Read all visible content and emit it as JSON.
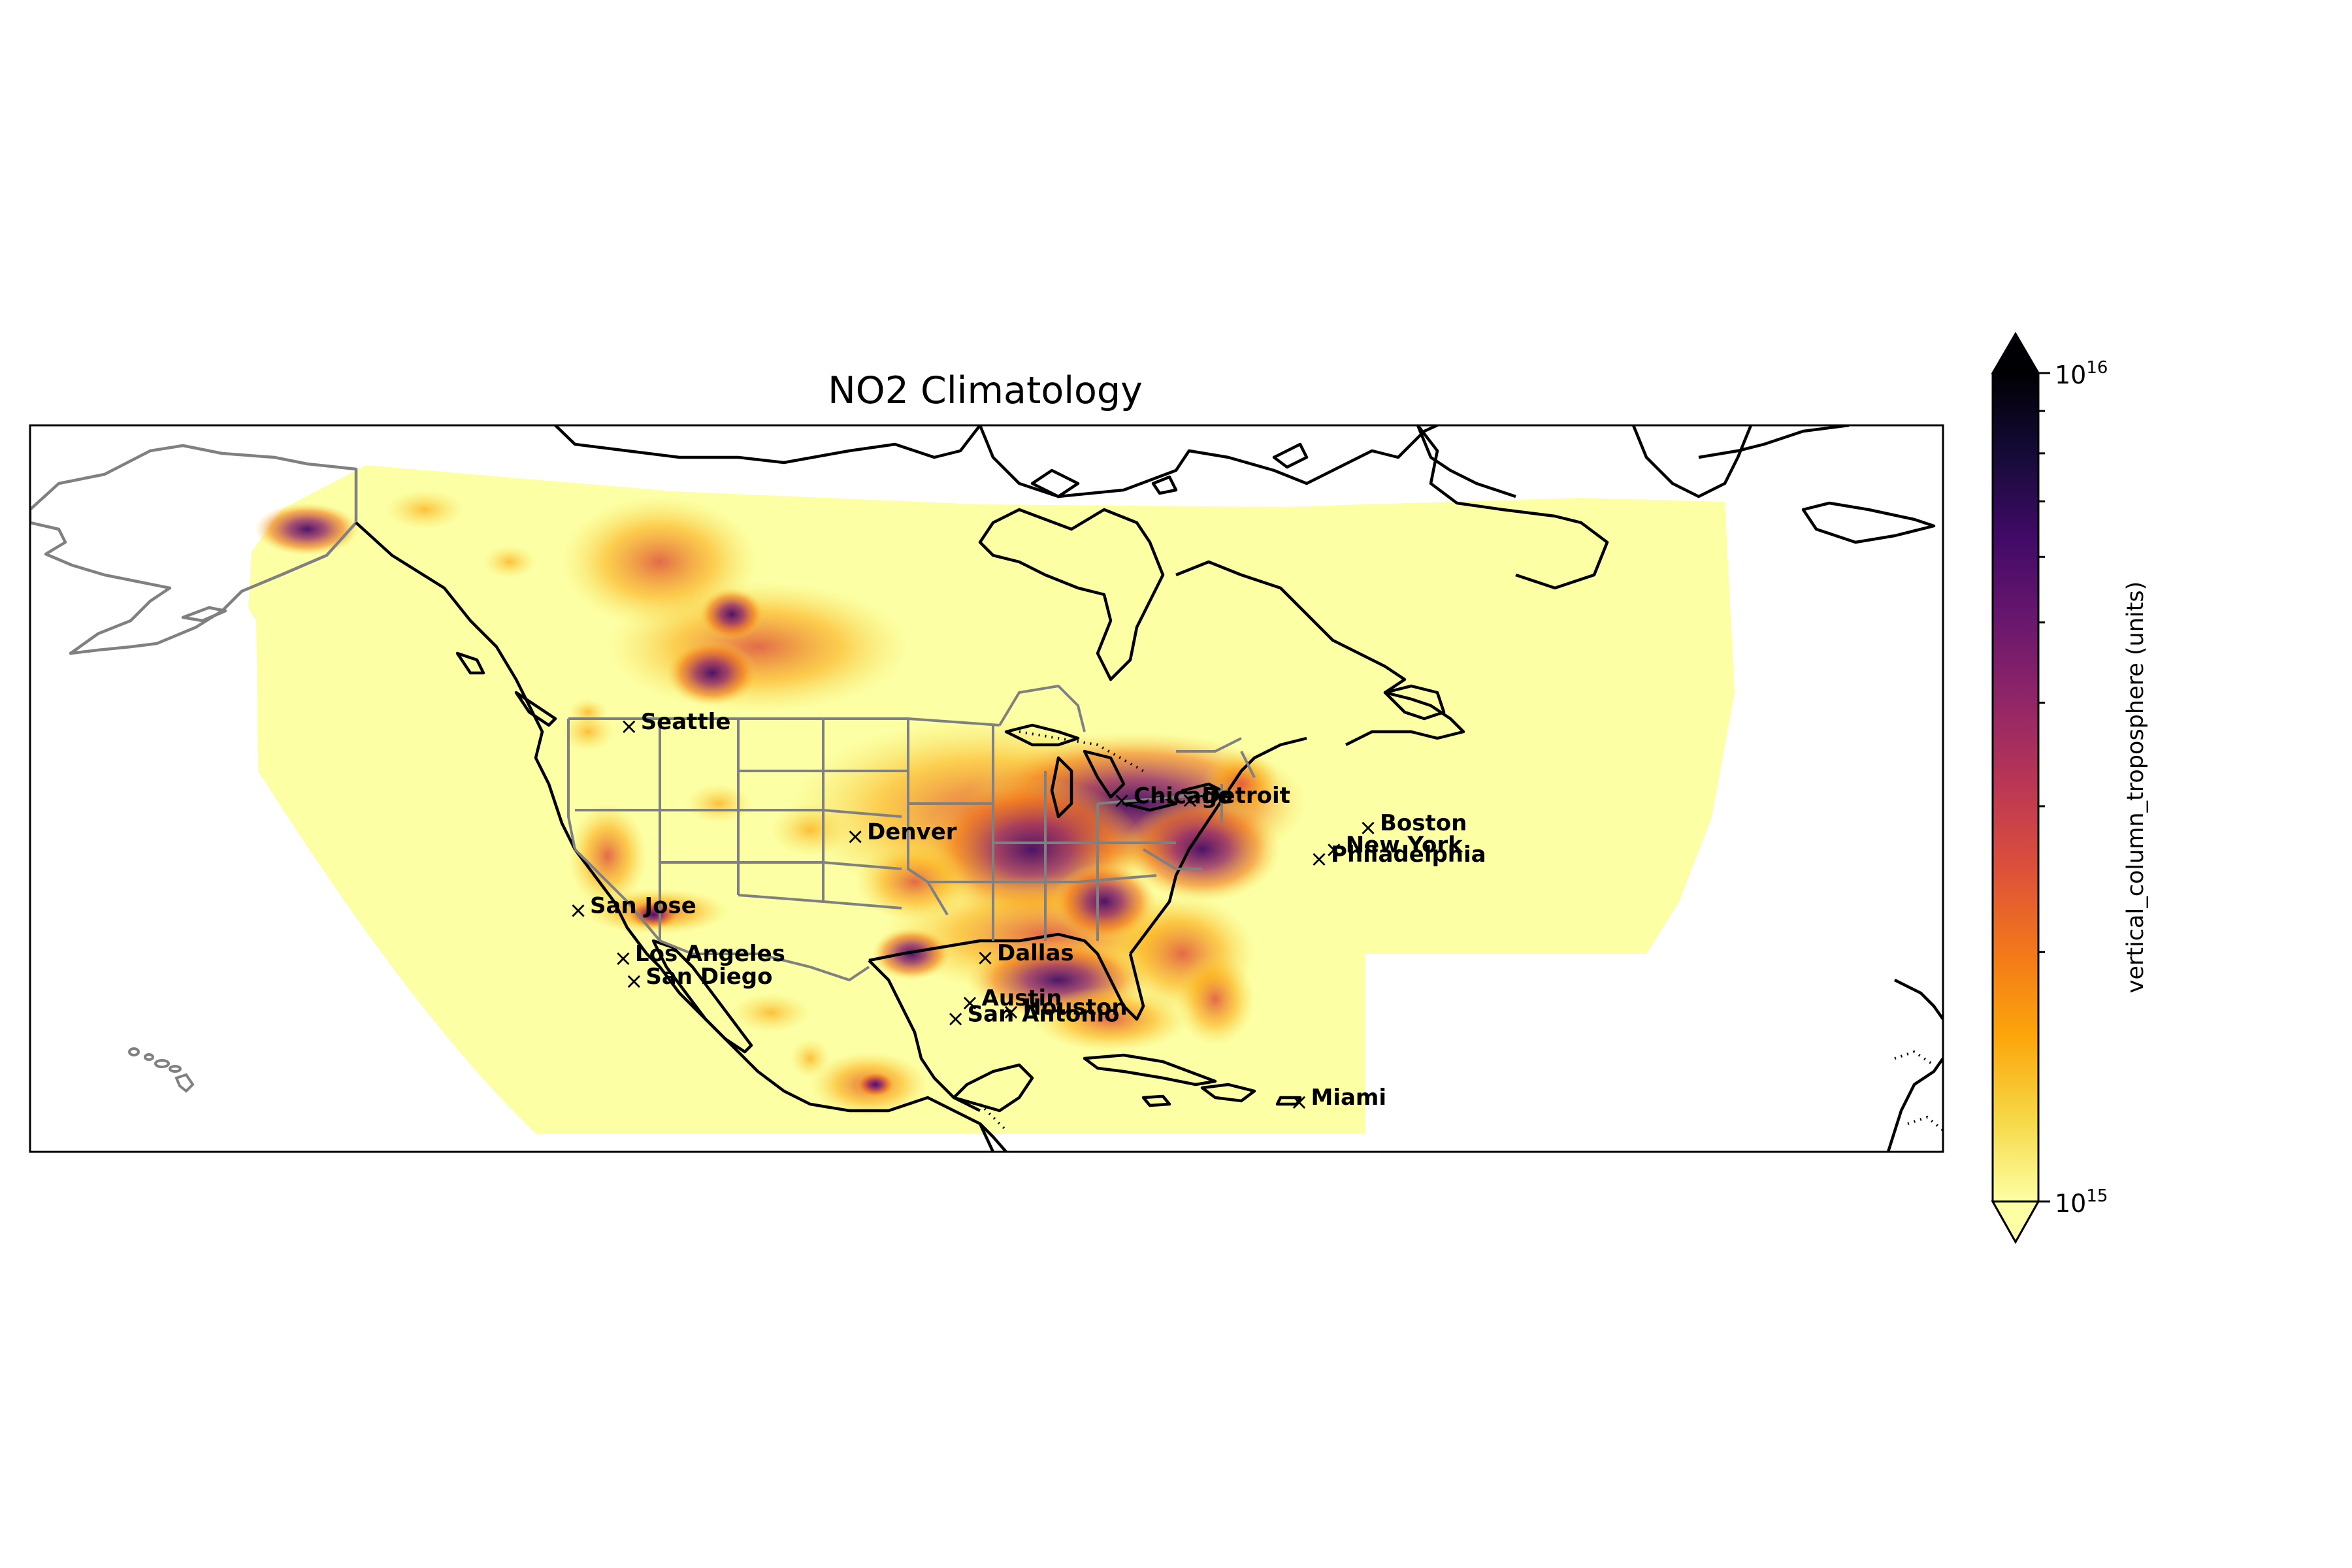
{
  "title": "NO2 Climatology",
  "colorbar": {
    "label": "vertical_column_troposphere (units)",
    "colormap": "inferno_r",
    "scale": "log",
    "min_label": "10",
    "min_exp": "15",
    "max_label": "10",
    "max_exp": "16",
    "range": [
      1000000000000000.0,
      1e+16
    ],
    "extend": "both",
    "stops": [
      "#fcffa4",
      "#f6d746",
      "#fca50a",
      "#f37819",
      "#dd513a",
      "#bc3754",
      "#932667",
      "#6a176e",
      "#420a68",
      "#160b39",
      "#000004"
    ]
  },
  "colors": {
    "coastline": "#000000",
    "state_borders": "#808080",
    "marker": "#000000",
    "background": "#ffffff"
  },
  "cities": [
    {
      "name": "Seattle",
      "lon": -122.3,
      "lat": 47.6
    },
    {
      "name": "Chicago",
      "lon": -87.6,
      "lat": 41.9
    },
    {
      "name": "Detroit",
      "lon": -83.0,
      "lat": 42.3
    },
    {
      "name": "Boston",
      "lon": -71.1,
      "lat": 42.4
    },
    {
      "name": "Philadelphia",
      "lon": -75.2,
      "lat": 40.0
    },
    {
      "name": "New York",
      "lon": -74.0,
      "lat": 40.7
    },
    {
      "name": "Denver",
      "lon": -105.0,
      "lat": 39.7
    },
    {
      "name": "San Jose",
      "lon": -121.9,
      "lat": 37.3
    },
    {
      "name": "Los Angeles",
      "lon": -118.2,
      "lat": 34.1
    },
    {
      "name": "San Diego",
      "lon": -117.2,
      "lat": 32.7
    },
    {
      "name": "Dallas",
      "lon": -96.8,
      "lat": 32.8
    },
    {
      "name": "Austin",
      "lon": -97.7,
      "lat": 30.3
    },
    {
      "name": "San Antonio",
      "lon": -98.5,
      "lat": 29.4
    },
    {
      "name": "Houston",
      "lon": -95.4,
      "lat": 29.8
    },
    {
      "name": "Miami",
      "lon": -80.2,
      "lat": 25.8
    }
  ]
}
